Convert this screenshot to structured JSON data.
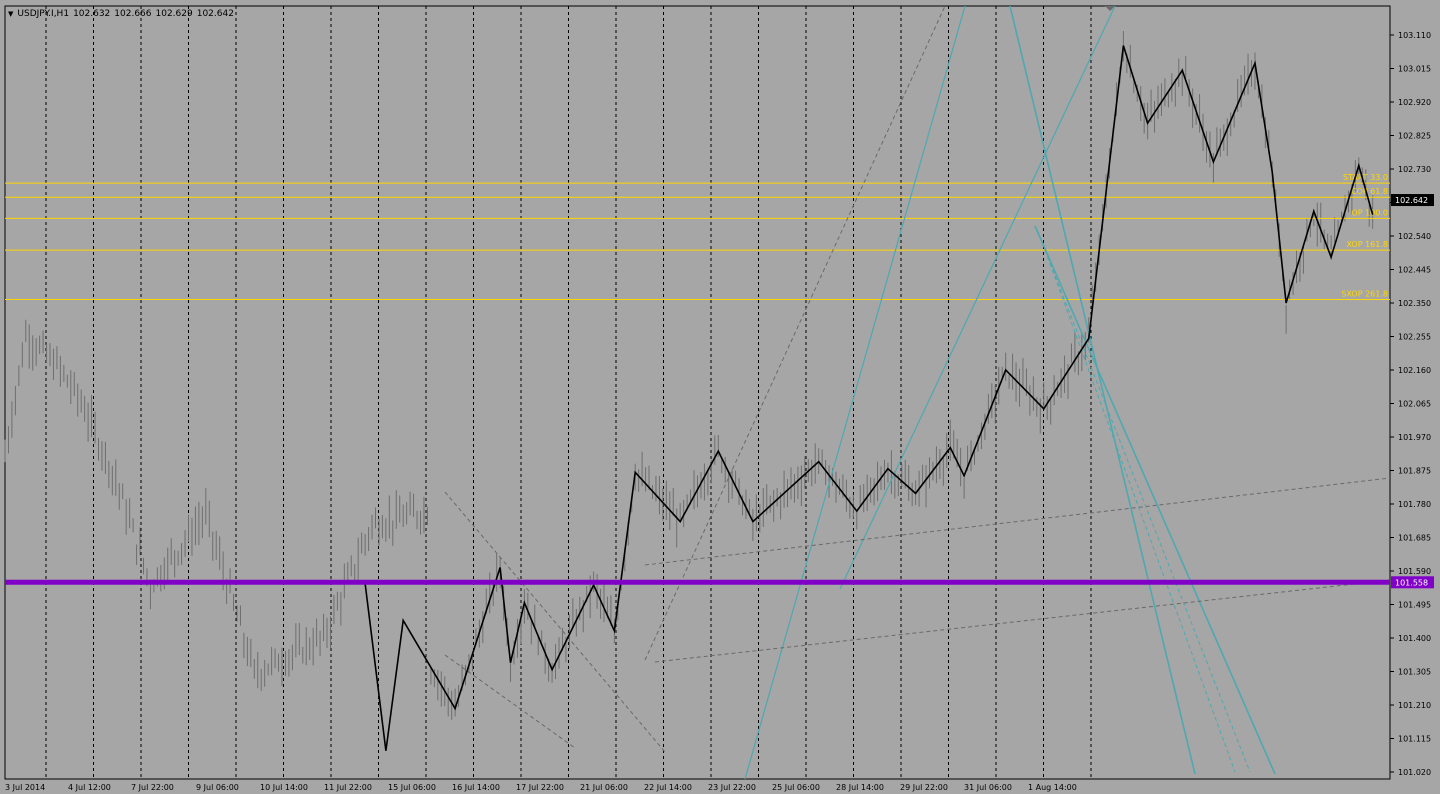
{
  "header": {
    "dropdown_icon": "triangle-down-icon",
    "symbol": "USDJPY.I,H1",
    "open": "102.632",
    "high": "102.666",
    "low": "102.629",
    "close": "102.642"
  },
  "colors": {
    "background": "#a6a6a6",
    "candles": "#6e6e6e",
    "zigzag": "#000000",
    "fib_lines": "#ffd700",
    "fib_labels": "#ffd700",
    "channel": "#4fa8b0",
    "support_line": "#8000c8",
    "price_tag": "#000000",
    "support_tag": "#8000c8"
  },
  "chart_data": {
    "type": "candlestick",
    "symbol": "USDJPY.I",
    "timeframe": "H1",
    "ylim": [
      101.0,
      103.2
    ],
    "y_ticks": [
      "103.110",
      "103.015",
      "102.920",
      "102.825",
      "102.730",
      "102.635",
      "102.540",
      "102.445",
      "102.350",
      "102.255",
      "102.160",
      "102.065",
      "101.970",
      "101.875",
      "101.780",
      "101.685",
      "101.590",
      "101.495",
      "101.400",
      "101.305",
      "101.210",
      "101.115",
      "101.020"
    ],
    "x_ticks": [
      "3 Jul 2014",
      "4 Jul 12:00",
      "7 Jul 22:00",
      "9 Jul 06:00",
      "10 Jul 14:00",
      "11 Jul 22:00",
      "15 Jul 06:00",
      "16 Jul 14:00",
      "17 Jul 22:00",
      "21 Jul 06:00",
      "22 Jul 14:00",
      "23 Jul 22:00",
      "25 Jul 06:00",
      "28 Jul 14:00",
      "29 Jul 22:00",
      "31 Jul 06:00",
      "1 Aug 14:00"
    ],
    "day_separators": 23,
    "current_price": "102.642",
    "support_level": {
      "value": 101.558,
      "label": "101.558"
    },
    "fib_levels": [
      {
        "label": "START 33.0",
        "value": 102.69
      },
      {
        "label": "COP 61.8",
        "value": 102.65
      },
      {
        "label": "OP 100.0",
        "value": 102.59
      },
      {
        "label": "XOP 161.8",
        "value": 102.5
      },
      {
        "label": "SXOP 261.8",
        "value": 102.36
      }
    ],
    "zigzag_points": [
      [
        104,
        101.555
      ],
      [
        110,
        101.08
      ],
      [
        115,
        101.45
      ],
      [
        130,
        101.2
      ],
      [
        143,
        101.6
      ],
      [
        146,
        101.33
      ],
      [
        150,
        101.5
      ],
      [
        158,
        101.31
      ],
      [
        170,
        101.55
      ],
      [
        176,
        101.42
      ],
      [
        182,
        101.87
      ],
      [
        195,
        101.73
      ],
      [
        206,
        101.93
      ],
      [
        216,
        101.73
      ],
      [
        235,
        101.9
      ],
      [
        246,
        101.76
      ],
      [
        255,
        101.88
      ],
      [
        263,
        101.81
      ],
      [
        273,
        101.94
      ],
      [
        277,
        101.86
      ],
      [
        289,
        102.16
      ],
      [
        300,
        102.05
      ],
      [
        313,
        102.25
      ],
      [
        323,
        103.08
      ],
      [
        330,
        102.86
      ],
      [
        340,
        103.01
      ],
      [
        349,
        102.75
      ],
      [
        361,
        103.03
      ],
      [
        366,
        102.72
      ],
      [
        370,
        102.35
      ],
      [
        378,
        102.61
      ],
      [
        383,
        102.48
      ],
      [
        391,
        102.74
      ],
      [
        395,
        102.6
      ]
    ]
  }
}
